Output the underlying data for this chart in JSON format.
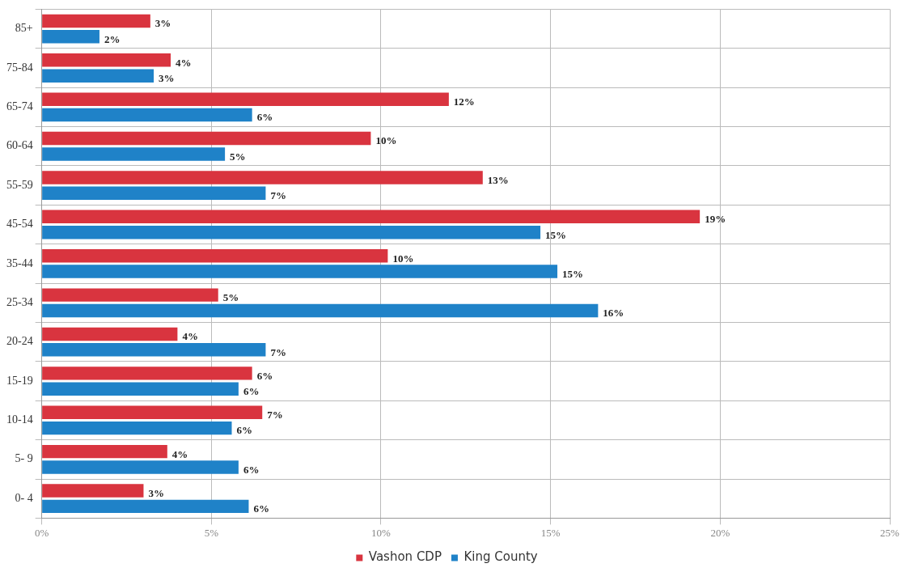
{
  "chart_data": {
    "type": "bar",
    "orientation": "horizontal",
    "categories": [
      "85+",
      "75-84",
      "65-74",
      "60-64",
      "55-59",
      "45-54",
      "35-44",
      "25-34",
      "20-24",
      "15-19",
      "10-14",
      "5- 9",
      "0- 4"
    ],
    "series": [
      {
        "name": "Vashon CDP",
        "color": "#d9343f",
        "values": [
          3.2,
          3.8,
          12.0,
          9.7,
          13.0,
          19.4,
          10.2,
          5.2,
          4.0,
          6.2,
          6.5,
          3.7,
          3.0
        ],
        "value_labels": [
          "3%",
          "4%",
          "12%",
          "10%",
          "13%",
          "19%",
          "10%",
          "5%",
          "4%",
          "6%",
          "7%",
          "4%",
          "3%"
        ]
      },
      {
        "name": "King County",
        "color": "#1f82c8",
        "values": [
          1.7,
          3.3,
          6.2,
          5.4,
          6.6,
          14.7,
          15.2,
          16.4,
          6.6,
          5.8,
          5.6,
          5.8,
          6.1
        ],
        "value_labels": [
          "2%",
          "3%",
          "6%",
          "5%",
          "7%",
          "15%",
          "15%",
          "16%",
          "7%",
          "6%",
          "6%",
          "6%",
          "6%"
        ]
      }
    ],
    "xlim": [
      0,
      25
    ],
    "xticks": [
      {
        "value": 0,
        "label": "0%"
      },
      {
        "value": 5,
        "label": "5%"
      },
      {
        "value": 10,
        "label": "10%"
      },
      {
        "value": 15,
        "label": "15%"
      },
      {
        "value": 20,
        "label": "20%"
      },
      {
        "value": 25,
        "label": "25%"
      }
    ],
    "grid": true,
    "legend": "bottom"
  }
}
